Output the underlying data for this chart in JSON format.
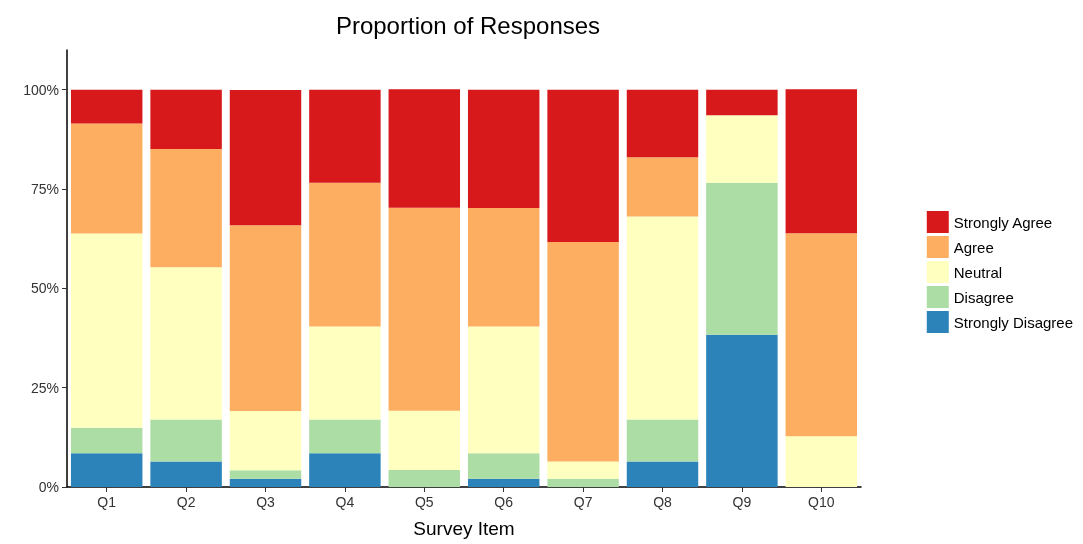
{
  "chart_data": {
    "type": "bar",
    "title": "Proportion of Responses",
    "xlabel": "Survey Item",
    "categories": [
      "Q1",
      "Q2",
      "Q3",
      "Q4",
      "Q5",
      "Q6",
      "Q7",
      "Q8",
      "Q9",
      "Q10"
    ],
    "stacked": true,
    "legend": "right",
    "grid": false,
    "ylim": [
      0,
      110
    ],
    "yticks": [
      {
        "value": 0,
        "label": "0%"
      },
      {
        "value": 25,
        "label": "25%"
      },
      {
        "value": 50,
        "label": "50%"
      },
      {
        "value": 75,
        "label": "75%"
      },
      {
        "value": 100,
        "label": "100%"
      }
    ],
    "series": [
      {
        "name": "Strongly Disagree",
        "color": "#2b83ba",
        "values": [
          8.5,
          6.4,
          2.1,
          8.5,
          0,
          2.1,
          0,
          6.4,
          38.3,
          0
        ]
      },
      {
        "name": "Disagree",
        "color": "#abdda4",
        "values": [
          6.4,
          10.6,
          2.1,
          8.5,
          4.3,
          6.4,
          2.1,
          10.6,
          38.3,
          0
        ]
      },
      {
        "name": "Neutral",
        "color": "#ffffbf",
        "values": [
          48.9,
          38.3,
          14.9,
          23.4,
          14.9,
          31.9,
          4.3,
          51.1,
          17.0,
          12.8
        ]
      },
      {
        "name": "Agree",
        "color": "#fdae61",
        "values": [
          27.7,
          29.8,
          46.8,
          36.2,
          51.1,
          29.8,
          55.3,
          14.9,
          0,
          51.1
        ]
      },
      {
        "name": "Strongly Agree",
        "color": "#d7191c",
        "values": [
          8.5,
          14.9,
          34.0,
          23.4,
          29.8,
          29.8,
          38.3,
          17.0,
          6.4,
          36.2
        ]
      }
    ]
  }
}
